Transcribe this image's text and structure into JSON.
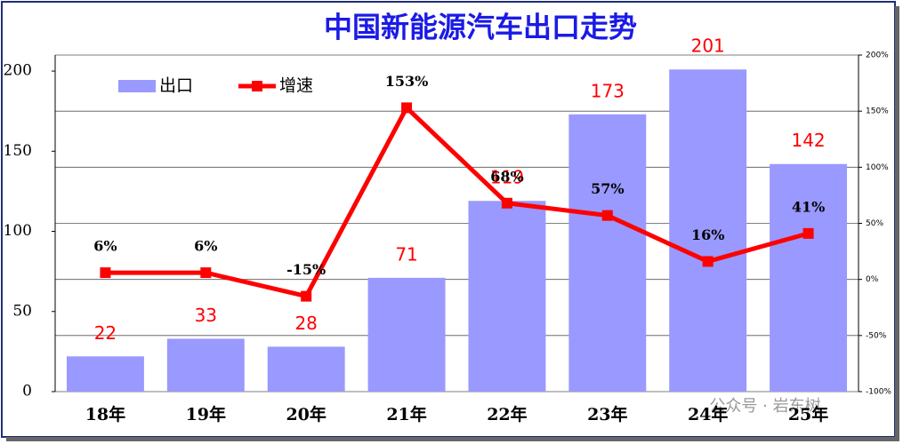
{
  "chart_data": {
    "type": "bar",
    "title": "中国新能源汽车出口走势",
    "categories": [
      "18年",
      "19年",
      "20年",
      "21年",
      "22年",
      "23年",
      "24年",
      "25年"
    ],
    "series": [
      {
        "name": "出口",
        "type": "bar",
        "color": "#9999ff",
        "values": [
          22,
          33,
          28,
          71,
          119,
          173,
          201,
          142
        ]
      },
      {
        "name": "增速",
        "type": "line",
        "axis": "y2",
        "color": "#ff0000",
        "values": [
          6,
          6,
          -15,
          153,
          68,
          57,
          16,
          41
        ],
        "value_labels": [
          "6%",
          "6%",
          "-15%",
          "153%",
          "68%",
          "57%",
          "16%",
          "41%"
        ]
      }
    ],
    "ylim": [
      0,
      210
    ],
    "yticks": [
      0,
      50,
      100,
      150,
      200
    ],
    "y2lim": [
      -100,
      200
    ],
    "y2ticks": [
      {
        "value": -100,
        "label": "-100%"
      },
      {
        "value": -50,
        "label": "-50%"
      },
      {
        "value": 0,
        "label": "0%"
      },
      {
        "value": 50,
        "label": "50%"
      },
      {
        "value": 100,
        "label": "100%"
      },
      {
        "value": 150,
        "label": "150%"
      },
      {
        "value": 200,
        "label": "200%"
      }
    ],
    "grid": true,
    "legend": "top-left",
    "watermark": "公众号 · 岩东树"
  }
}
